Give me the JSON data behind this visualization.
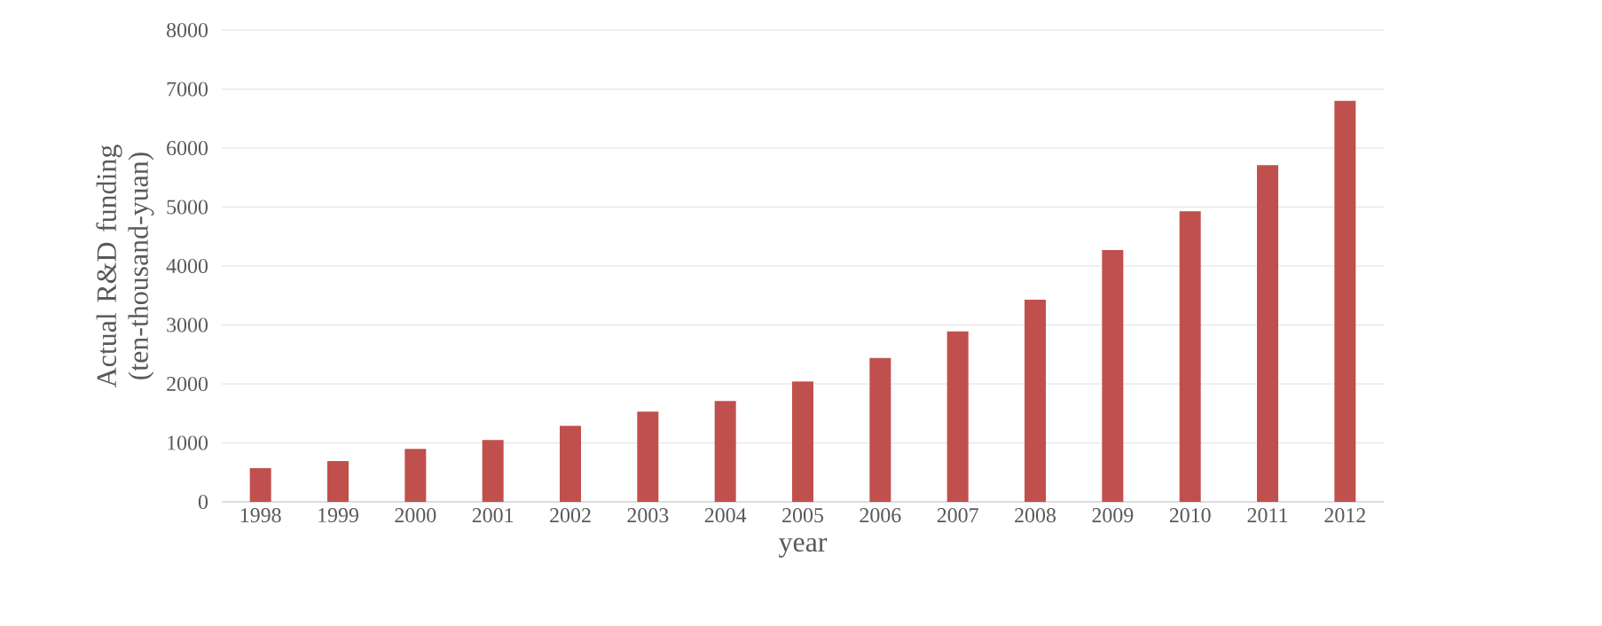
{
  "chart_data": {
    "type": "bar",
    "xlabel": "year",
    "ylabel": "Actual R&D funding (ten-thousand-yuan)",
    "categories": [
      "1998",
      "1999",
      "2000",
      "2001",
      "2002",
      "2003",
      "2004",
      "2005",
      "2006",
      "2007",
      "2008",
      "2009",
      "2010",
      "2011",
      "2012"
    ],
    "values": [
      570,
      690,
      900,
      1050,
      1290,
      1530,
      1710,
      2040,
      2440,
      2890,
      3430,
      4270,
      4930,
      5710,
      6800
    ],
    "color": "#c0504d",
    "ylim": [
      0,
      8000
    ],
    "yticks": [
      0,
      1000,
      2000,
      3000,
      4000,
      5000,
      6000,
      7000,
      8000
    ],
    "grid": "y"
  }
}
